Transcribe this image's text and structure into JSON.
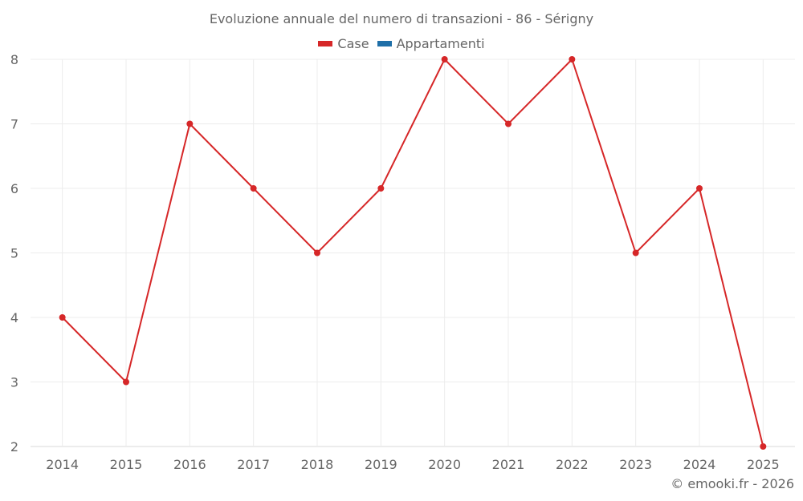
{
  "chart_data": {
    "type": "line",
    "title": "Evoluzione annuale del numero di transazioni - 86 - Sérigny",
    "xlabel": "",
    "ylabel": "",
    "categories": [
      "2014",
      "2015",
      "2016",
      "2017",
      "2018",
      "2019",
      "2020",
      "2021",
      "2022",
      "2023",
      "2024",
      "2025"
    ],
    "series": [
      {
        "name": "Case",
        "color": "#d62728",
        "values": [
          4,
          3,
          7,
          6,
          5,
          6,
          8,
          7,
          8,
          5,
          6,
          2
        ]
      },
      {
        "name": "Appartamenti",
        "color": "#1f6fa8",
        "values": []
      }
    ],
    "ylim": [
      2,
      8
    ],
    "yticks": [
      2,
      3,
      4,
      5,
      6,
      7,
      8
    ],
    "grid": true,
    "legend_position": "top"
  },
  "legend": {
    "items": [
      {
        "label": "Case",
        "color": "#d62728"
      },
      {
        "label": "Appartamenti",
        "color": "#1f6fa8"
      }
    ]
  },
  "footer": {
    "credit": "© emooki.fr - 2026"
  }
}
